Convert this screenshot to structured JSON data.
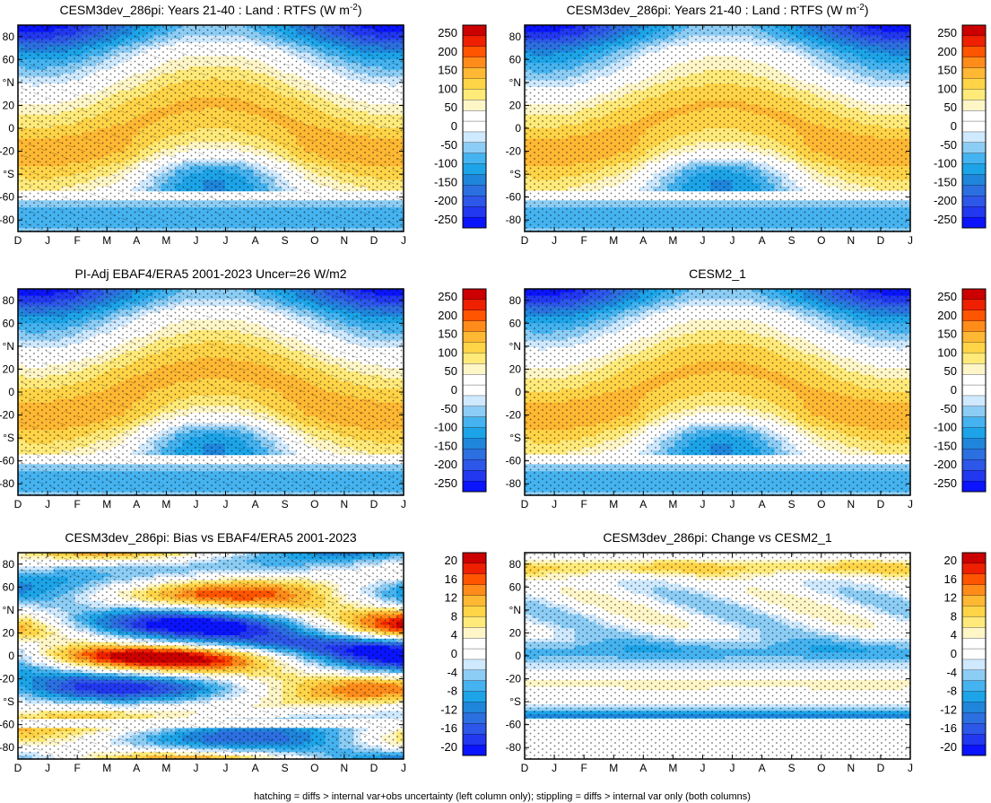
{
  "footnote": "hatching = diffs > internal var+obs uncertainty (left column only); stippling = diffs > internal var only (both columns)",
  "chart_data": [
    {
      "type": "heatmap",
      "title": "CESM3dev_286pi: Years 21-40 : Land : RTFS (W m",
      "title_sup": "-2",
      "title_end": ")",
      "x_labels": [
        "D",
        "J",
        "F",
        "M",
        "A",
        "M",
        "J",
        "J",
        "A",
        "S",
        "O",
        "N",
        "D",
        "J"
      ],
      "y_ticks": [
        "80",
        "60",
        "°N",
        "20",
        "0",
        "-20",
        "°S",
        "-60",
        "-80"
      ],
      "colorbar": [
        "250",
        "200",
        "150",
        "100",
        "50",
        "0",
        "-50",
        "-100",
        "-150",
        "-200",
        "-250"
      ],
      "ylim": [
        -90,
        90
      ],
      "kind": "abs",
      "hatch": true,
      "stipple": true
    },
    {
      "type": "heatmap",
      "title": "CESM3dev_286pi: Years 21-40 : Land : RTFS (W m",
      "title_sup": "-2",
      "title_end": ")",
      "x_labels": [
        "D",
        "J",
        "F",
        "M",
        "A",
        "M",
        "J",
        "J",
        "A",
        "S",
        "O",
        "N",
        "D",
        "J"
      ],
      "y_ticks": [
        "80",
        "60",
        "°N",
        "20",
        "0",
        "-20",
        "°S",
        "-60",
        "-80"
      ],
      "colorbar": [
        "250",
        "200",
        "150",
        "100",
        "50",
        "0",
        "-50",
        "-100",
        "-150",
        "-200",
        "-250"
      ],
      "ylim": [
        -90,
        90
      ],
      "kind": "abs",
      "hatch": false,
      "stipple": true
    },
    {
      "type": "heatmap",
      "title": "PI-Adj EBAF4/ERA5 2001-2023 Uncer=26 W/m2",
      "x_labels": [
        "D",
        "J",
        "F",
        "M",
        "A",
        "M",
        "J",
        "J",
        "A",
        "S",
        "O",
        "N",
        "D",
        "J"
      ],
      "y_ticks": [
        "80",
        "60",
        "°N",
        "20",
        "0",
        "-20",
        "°S",
        "-60",
        "-80"
      ],
      "colorbar": [
        "250",
        "200",
        "150",
        "100",
        "50",
        "0",
        "-50",
        "-100",
        "-150",
        "-200",
        "-250"
      ],
      "ylim": [
        -90,
        90
      ],
      "kind": "abs",
      "hatch": true,
      "stipple": true
    },
    {
      "type": "heatmap",
      "title": "CESM2_1",
      "x_labels": [
        "D",
        "J",
        "F",
        "M",
        "A",
        "M",
        "J",
        "J",
        "A",
        "S",
        "O",
        "N",
        "D",
        "J"
      ],
      "y_ticks": [
        "80",
        "60",
        "°N",
        "20",
        "0",
        "-20",
        "°S",
        "-60",
        "-80"
      ],
      "colorbar": [
        "250",
        "200",
        "150",
        "100",
        "50",
        "0",
        "-50",
        "-100",
        "-150",
        "-200",
        "-250"
      ],
      "ylim": [
        -90,
        90
      ],
      "kind": "abs",
      "hatch": false,
      "stipple": true
    },
    {
      "type": "heatmap",
      "title": "CESM3dev_286pi: Bias vs EBAF4/ERA5 2001-2023",
      "x_labels": [
        "D",
        "J",
        "F",
        "M",
        "A",
        "M",
        "J",
        "J",
        "A",
        "S",
        "O",
        "N",
        "D",
        "J"
      ],
      "y_ticks": [
        "80",
        "60",
        "°N",
        "20",
        "0",
        "-20",
        "°S",
        "-60",
        "-80"
      ],
      "colorbar": [
        "20",
        "16",
        "12",
        "8",
        "4",
        "0",
        "-4",
        "-8",
        "-12",
        "-16",
        "-20"
      ],
      "ylim": [
        -90,
        90
      ],
      "kind": "bias",
      "hatch": true,
      "stipple": true
    },
    {
      "type": "heatmap",
      "title": "CESM3dev_286pi: Change vs CESM2_1",
      "x_labels": [
        "D",
        "J",
        "F",
        "M",
        "A",
        "M",
        "J",
        "J",
        "A",
        "S",
        "O",
        "N",
        "D",
        "J"
      ],
      "y_ticks": [
        "80",
        "60",
        "°N",
        "20",
        "0",
        "-20",
        "°S",
        "-60",
        "-80"
      ],
      "colorbar": [
        "20",
        "16",
        "12",
        "8",
        "4",
        "0",
        "-4",
        "-8",
        "-12",
        "-16",
        "-20"
      ],
      "ylim": [
        -90,
        90
      ],
      "kind": "change",
      "hatch": false,
      "stipple": true
    }
  ],
  "colors": {
    "scale": [
      "#cc0000",
      "#ee2000",
      "#ff5500",
      "#ff8c1a",
      "#ffb833",
      "#ffd447",
      "#ffea7a",
      "#fff6c8",
      "#ffffff",
      "#ffffff",
      "#cfe9ff",
      "#8ccdf5",
      "#45b3f0",
      "#1da4e8",
      "#1f86dc",
      "#2c6fe0",
      "#2d57e8",
      "#2238f0",
      "#0a14ff"
    ]
  }
}
